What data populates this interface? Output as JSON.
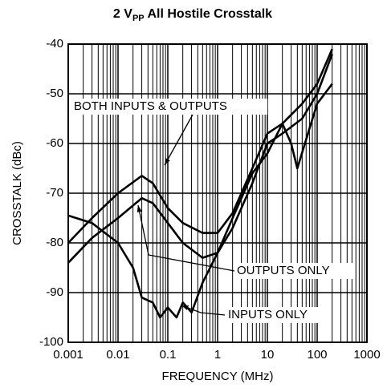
{
  "chart_data": {
    "type": "line",
    "title": {
      "text": "2 V",
      "sub": "PP",
      "rest": " All Hostile Crosstalk"
    },
    "xlabel": "FREQUENCY (MHz)",
    "ylabel": "CROSSTALK (dBc)",
    "log_x": true,
    "grid": true,
    "xlim": [
      0.001,
      1000
    ],
    "ylim": [
      -100,
      -40
    ],
    "xticks": [
      0.001,
      0.01,
      0.1,
      1,
      10,
      100,
      1000
    ],
    "yticks": [
      -40,
      -50,
      -60,
      -70,
      -80,
      -90,
      -100
    ],
    "annotations": [
      "BOTH INPUTS & OUTPUTS",
      "OUTPUTS ONLY",
      "INPUTS ONLY"
    ],
    "series": [
      {
        "name": "BOTH INPUTS & OUTPUTS",
        "color": "#000000",
        "x": [
          0.001,
          0.003,
          0.01,
          0.03,
          0.05,
          0.1,
          0.2,
          0.5,
          1,
          2,
          5,
          10,
          20,
          50,
          100,
          200
        ],
        "values": [
          -80,
          -75,
          -70,
          -66.5,
          -68,
          -73,
          -76,
          -78,
          -78,
          -74,
          -65,
          -58,
          -56,
          -52,
          -48,
          -41
        ]
      },
      {
        "name": "OUTPUTS ONLY",
        "color": "#000000",
        "x": [
          0.001,
          0.003,
          0.01,
          0.03,
          0.05,
          0.1,
          0.2,
          0.5,
          1,
          2,
          5,
          10,
          20,
          50,
          100,
          200
        ],
        "values": [
          -84,
          -79,
          -75,
          -71,
          -72,
          -76,
          -80,
          -83,
          -82,
          -77,
          -68,
          -60,
          -58,
          -55,
          -50,
          -42
        ]
      },
      {
        "name": "INPUTS ONLY",
        "color": "#000000",
        "x": [
          0.001,
          0.003,
          0.01,
          0.02,
          0.03,
          0.05,
          0.07,
          0.1,
          0.15,
          0.2,
          0.3,
          0.5,
          1,
          2,
          5,
          10,
          20,
          30,
          40,
          70,
          100,
          200
        ],
        "values": [
          -74.5,
          -76,
          -80,
          -85,
          -91,
          -92,
          -95,
          -93,
          -95,
          -92,
          -94,
          -88,
          -82,
          -75,
          -66,
          -62,
          -56,
          -60,
          -65,
          -57,
          -52,
          -48
        ]
      }
    ]
  }
}
